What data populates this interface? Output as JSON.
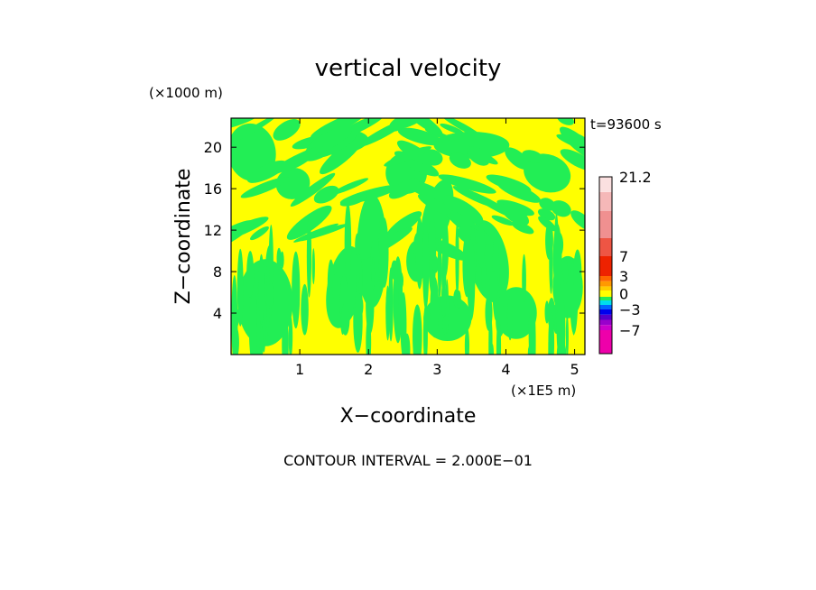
{
  "chart_data": {
    "type": "heatmap",
    "title": "vertical velocity",
    "time_label": "t=93600 s",
    "xlabel": "X−coordinate",
    "ylabel": "Z−coordinate",
    "x_unit": "(×1E5 m)",
    "y_unit": "(×1000 m)",
    "xlim": [
      0,
      5.15
    ],
    "ylim": [
      0,
      22.8
    ],
    "x_ticks": [
      1,
      2,
      3,
      4,
      5
    ],
    "y_ticks": [
      4,
      8,
      12,
      16,
      20
    ],
    "x_tick_labels": [
      "1",
      "2",
      "3",
      "4",
      "5"
    ],
    "y_tick_labels": [
      "4",
      "8",
      "12",
      "16",
      "20"
    ],
    "contour_interval_label": "CONTOUR INTERVAL = 2.000E−01",
    "field_levels": [
      {
        "range": [
          -0.2,
          0.0
        ],
        "color": "#22ee55"
      },
      {
        "range": [
          0.0,
          0.2
        ],
        "color": "#ffff00"
      }
    ],
    "colorbar": {
      "colors": [
        "#ee00aa",
        "#cc00cc",
        "#9900cc",
        "#5500cc",
        "#0000ee",
        "#0066ff",
        "#00ddee",
        "#22ee55",
        "#ffff00",
        "#ffcc00",
        "#ff9900",
        "#ff6600",
        "#ee2200",
        "#ee5544",
        "#f09090",
        "#f5b8b8",
        "#fbe0e0"
      ],
      "tick_values": [
        -7,
        -3,
        0,
        3,
        7,
        21.2
      ],
      "tick_labels": [
        "−7",
        "−3",
        "0",
        "3",
        "7",
        "21.2"
      ]
    }
  }
}
